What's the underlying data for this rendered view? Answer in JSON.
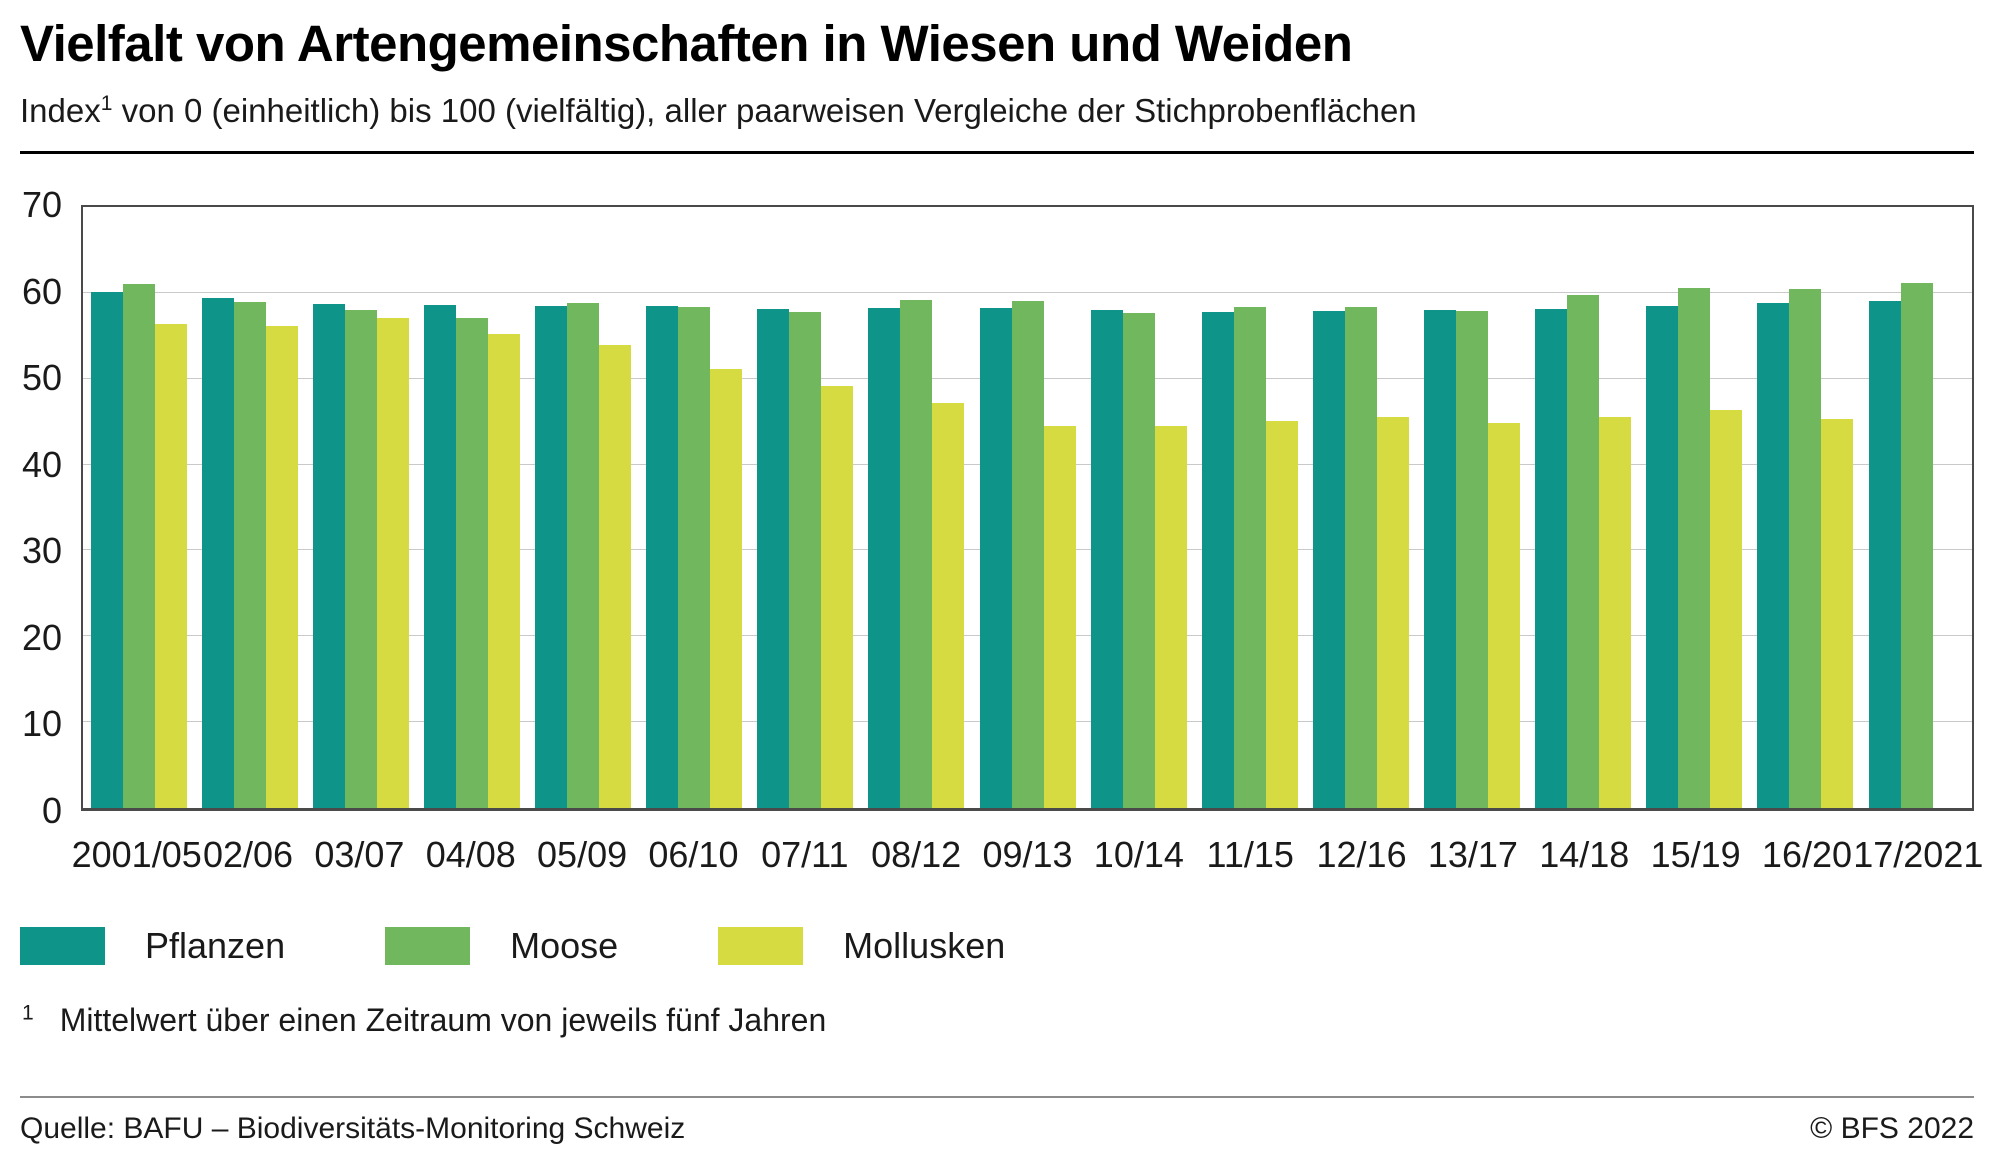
{
  "header": {
    "title": "Vielfalt von Artengemeinschaften in Wiesen und Weiden",
    "subtitle_prefix": "Index",
    "subtitle_sup": "1",
    "subtitle_rest": " von 0 (einheitlich) bis 100 (vielfältig), aller paarweisen Vergleiche der Stichprobenflächen"
  },
  "chart_data": {
    "type": "bar",
    "categories": [
      "2001/05",
      "02/06",
      "03/07",
      "04/08",
      "05/09",
      "06/10",
      "07/11",
      "08/12",
      "09/13",
      "10/14",
      "11/15",
      "12/16",
      "13/17",
      "14/18",
      "15/19",
      "16/20",
      "17/2021"
    ],
    "series": [
      {
        "name": "Pflanzen",
        "color": "#0e9488",
        "values": [
          60.1,
          59.4,
          58.7,
          58.6,
          58.5,
          58.5,
          58.1,
          58.2,
          58.2,
          58.0,
          57.8,
          57.9,
          58.0,
          58.1,
          58.5,
          58.8,
          59.1
        ]
      },
      {
        "name": "Moose",
        "color": "#70b75d",
        "values": [
          61.0,
          58.9,
          58.0,
          57.1,
          58.8,
          58.3,
          57.8,
          59.2,
          59.0,
          57.6,
          58.4,
          58.4,
          57.9,
          59.8,
          60.6,
          60.4,
          61.2
        ]
      },
      {
        "name": "Mollusken",
        "color": "#d7db42",
        "values": [
          56.4,
          56.1,
          57.1,
          55.2,
          53.9,
          51.1,
          49.2,
          47.2,
          44.5,
          44.5,
          45.1,
          45.5,
          44.9,
          45.6,
          46.3,
          45.3,
          null
        ]
      }
    ],
    "title": "Vielfalt von Artengemeinschaften in Wiesen und Weiden",
    "xlabel": "",
    "ylabel": "Index von 0 (einheitlich) bis 100 (vielfältig)",
    "ylim": [
      0,
      70
    ],
    "yticks": [
      0,
      10,
      20,
      30,
      40,
      50,
      60,
      70
    ],
    "grid": "horizontal",
    "legend_position": "bottom"
  },
  "footnote": {
    "sup": "1",
    "text": "Mittelwert über einen Zeitraum von jeweils fünf Jahren"
  },
  "footer": {
    "source": "Quelle: BAFU – Biodiversitäts-Monitoring Schweiz",
    "copyright": "© BFS 2022"
  }
}
